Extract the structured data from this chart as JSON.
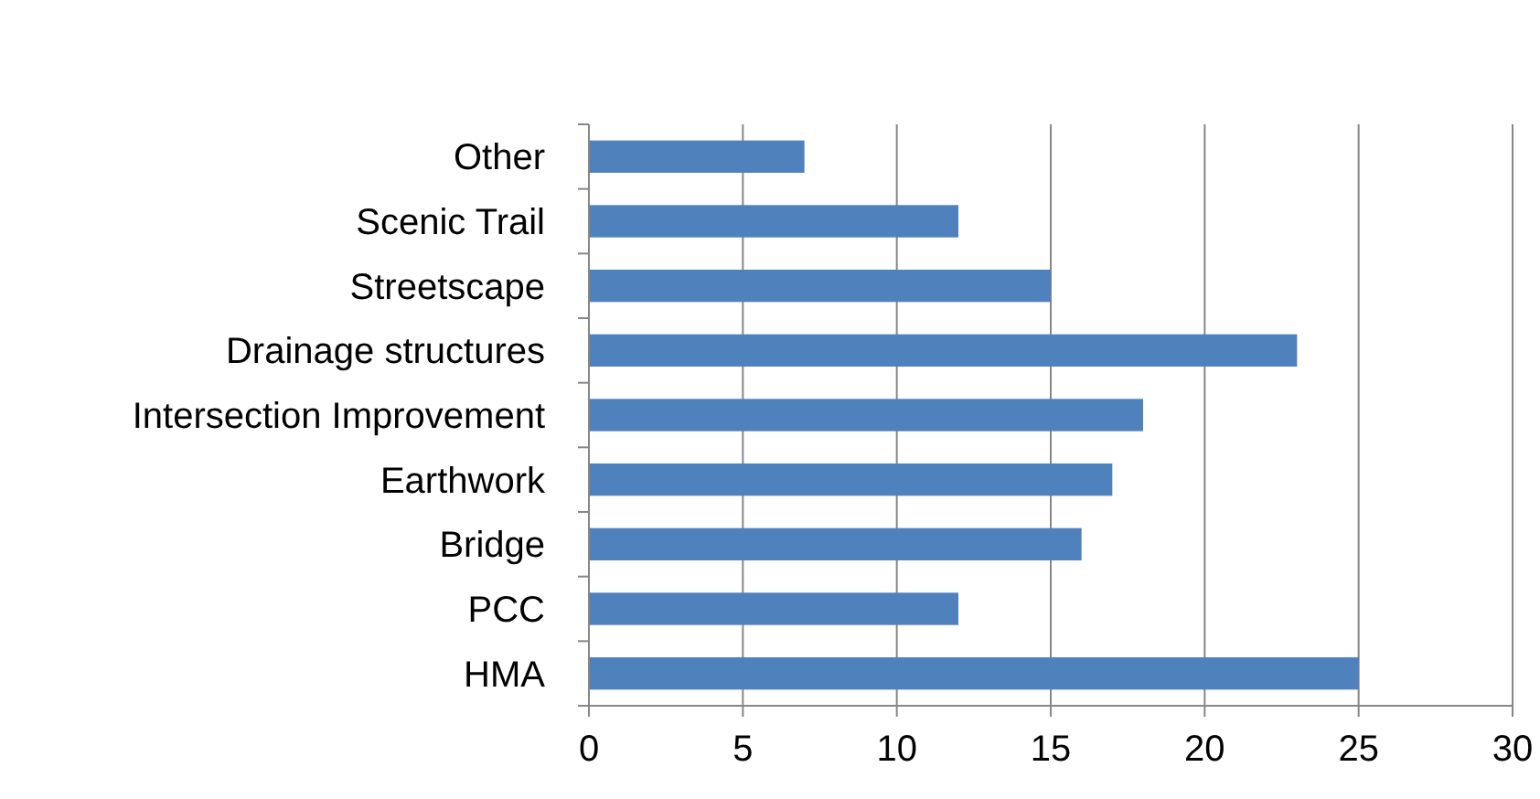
{
  "chart_data": {
    "type": "bar",
    "orientation": "horizontal",
    "categories": [
      "Other",
      "Scenic Trail",
      "Streetscape",
      "Drainage structures",
      "Intersection Improvement",
      "Earthwork",
      "Bridge",
      "PCC",
      "HMA"
    ],
    "values": [
      7,
      12,
      15,
      23,
      18,
      17,
      16,
      12,
      25
    ],
    "color": "#4f81bd",
    "xlim": [
      0,
      30
    ],
    "xticks": [
      0,
      5,
      10,
      15,
      20,
      25,
      30
    ],
    "grid": "x"
  }
}
